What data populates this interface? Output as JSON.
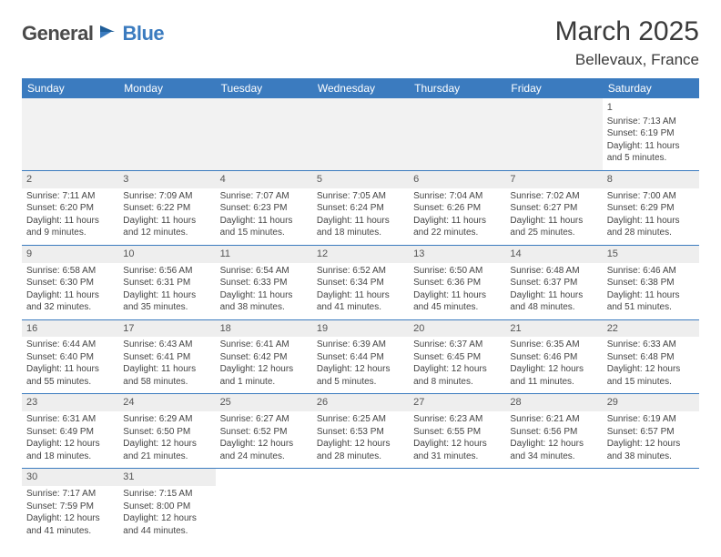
{
  "logo": {
    "part1": "General",
    "part2": "Blue"
  },
  "title": "March 2025",
  "location": "Bellevaux, France",
  "colors": {
    "header_bg": "#3b7bbf",
    "header_fg": "#ffffff",
    "row_sep": "#3b7bbf",
    "blank_bg": "#f2f2f2",
    "daynum_bg": "#eeeeee",
    "text": "#444444"
  },
  "typography": {
    "title_fontsize": 30,
    "location_fontsize": 17,
    "dayhead_fontsize": 12,
    "cell_fontsize": 10
  },
  "day_headers": [
    "Sunday",
    "Monday",
    "Tuesday",
    "Wednesday",
    "Thursday",
    "Friday",
    "Saturday"
  ],
  "weeks": [
    [
      null,
      null,
      null,
      null,
      null,
      null,
      {
        "n": "1",
        "sr": "Sunrise: 7:13 AM",
        "ss": "Sunset: 6:19 PM",
        "dl": "Daylight: 11 hours and 5 minutes."
      }
    ],
    [
      {
        "n": "2",
        "sr": "Sunrise: 7:11 AM",
        "ss": "Sunset: 6:20 PM",
        "dl": "Daylight: 11 hours and 9 minutes."
      },
      {
        "n": "3",
        "sr": "Sunrise: 7:09 AM",
        "ss": "Sunset: 6:22 PM",
        "dl": "Daylight: 11 hours and 12 minutes."
      },
      {
        "n": "4",
        "sr": "Sunrise: 7:07 AM",
        "ss": "Sunset: 6:23 PM",
        "dl": "Daylight: 11 hours and 15 minutes."
      },
      {
        "n": "5",
        "sr": "Sunrise: 7:05 AM",
        "ss": "Sunset: 6:24 PM",
        "dl": "Daylight: 11 hours and 18 minutes."
      },
      {
        "n": "6",
        "sr": "Sunrise: 7:04 AM",
        "ss": "Sunset: 6:26 PM",
        "dl": "Daylight: 11 hours and 22 minutes."
      },
      {
        "n": "7",
        "sr": "Sunrise: 7:02 AM",
        "ss": "Sunset: 6:27 PM",
        "dl": "Daylight: 11 hours and 25 minutes."
      },
      {
        "n": "8",
        "sr": "Sunrise: 7:00 AM",
        "ss": "Sunset: 6:29 PM",
        "dl": "Daylight: 11 hours and 28 minutes."
      }
    ],
    [
      {
        "n": "9",
        "sr": "Sunrise: 6:58 AM",
        "ss": "Sunset: 6:30 PM",
        "dl": "Daylight: 11 hours and 32 minutes."
      },
      {
        "n": "10",
        "sr": "Sunrise: 6:56 AM",
        "ss": "Sunset: 6:31 PM",
        "dl": "Daylight: 11 hours and 35 minutes."
      },
      {
        "n": "11",
        "sr": "Sunrise: 6:54 AM",
        "ss": "Sunset: 6:33 PM",
        "dl": "Daylight: 11 hours and 38 minutes."
      },
      {
        "n": "12",
        "sr": "Sunrise: 6:52 AM",
        "ss": "Sunset: 6:34 PM",
        "dl": "Daylight: 11 hours and 41 minutes."
      },
      {
        "n": "13",
        "sr": "Sunrise: 6:50 AM",
        "ss": "Sunset: 6:36 PM",
        "dl": "Daylight: 11 hours and 45 minutes."
      },
      {
        "n": "14",
        "sr": "Sunrise: 6:48 AM",
        "ss": "Sunset: 6:37 PM",
        "dl": "Daylight: 11 hours and 48 minutes."
      },
      {
        "n": "15",
        "sr": "Sunrise: 6:46 AM",
        "ss": "Sunset: 6:38 PM",
        "dl": "Daylight: 11 hours and 51 minutes."
      }
    ],
    [
      {
        "n": "16",
        "sr": "Sunrise: 6:44 AM",
        "ss": "Sunset: 6:40 PM",
        "dl": "Daylight: 11 hours and 55 minutes."
      },
      {
        "n": "17",
        "sr": "Sunrise: 6:43 AM",
        "ss": "Sunset: 6:41 PM",
        "dl": "Daylight: 11 hours and 58 minutes."
      },
      {
        "n": "18",
        "sr": "Sunrise: 6:41 AM",
        "ss": "Sunset: 6:42 PM",
        "dl": "Daylight: 12 hours and 1 minute."
      },
      {
        "n": "19",
        "sr": "Sunrise: 6:39 AM",
        "ss": "Sunset: 6:44 PM",
        "dl": "Daylight: 12 hours and 5 minutes."
      },
      {
        "n": "20",
        "sr": "Sunrise: 6:37 AM",
        "ss": "Sunset: 6:45 PM",
        "dl": "Daylight: 12 hours and 8 minutes."
      },
      {
        "n": "21",
        "sr": "Sunrise: 6:35 AM",
        "ss": "Sunset: 6:46 PM",
        "dl": "Daylight: 12 hours and 11 minutes."
      },
      {
        "n": "22",
        "sr": "Sunrise: 6:33 AM",
        "ss": "Sunset: 6:48 PM",
        "dl": "Daylight: 12 hours and 15 minutes."
      }
    ],
    [
      {
        "n": "23",
        "sr": "Sunrise: 6:31 AM",
        "ss": "Sunset: 6:49 PM",
        "dl": "Daylight: 12 hours and 18 minutes."
      },
      {
        "n": "24",
        "sr": "Sunrise: 6:29 AM",
        "ss": "Sunset: 6:50 PM",
        "dl": "Daylight: 12 hours and 21 minutes."
      },
      {
        "n": "25",
        "sr": "Sunrise: 6:27 AM",
        "ss": "Sunset: 6:52 PM",
        "dl": "Daylight: 12 hours and 24 minutes."
      },
      {
        "n": "26",
        "sr": "Sunrise: 6:25 AM",
        "ss": "Sunset: 6:53 PM",
        "dl": "Daylight: 12 hours and 28 minutes."
      },
      {
        "n": "27",
        "sr": "Sunrise: 6:23 AM",
        "ss": "Sunset: 6:55 PM",
        "dl": "Daylight: 12 hours and 31 minutes."
      },
      {
        "n": "28",
        "sr": "Sunrise: 6:21 AM",
        "ss": "Sunset: 6:56 PM",
        "dl": "Daylight: 12 hours and 34 minutes."
      },
      {
        "n": "29",
        "sr": "Sunrise: 6:19 AM",
        "ss": "Sunset: 6:57 PM",
        "dl": "Daylight: 12 hours and 38 minutes."
      }
    ],
    [
      {
        "n": "30",
        "sr": "Sunrise: 7:17 AM",
        "ss": "Sunset: 7:59 PM",
        "dl": "Daylight: 12 hours and 41 minutes."
      },
      {
        "n": "31",
        "sr": "Sunrise: 7:15 AM",
        "ss": "Sunset: 8:00 PM",
        "dl": "Daylight: 12 hours and 44 minutes."
      },
      null,
      null,
      null,
      null,
      null
    ]
  ]
}
